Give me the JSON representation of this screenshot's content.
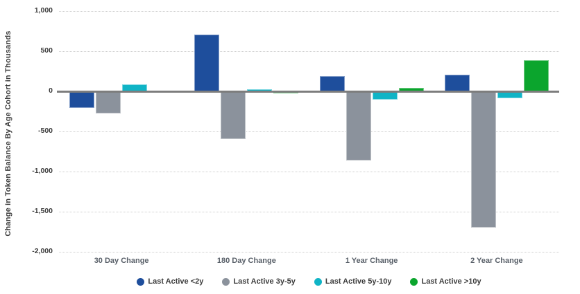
{
  "chart_data": {
    "type": "bar",
    "title": "",
    "xlabel": "",
    "ylabel": "Change in Token Balance By Age Cohort in Thousands",
    "categories": [
      "30 Day Change",
      "180 Day Change",
      "1 Year Change",
      "2 Year Change"
    ],
    "series": [
      {
        "name": "Last Active <2y",
        "color": "#1e4e9c",
        "values": [
          -210,
          705,
          190,
          205
        ]
      },
      {
        "name": "Last Active 3y-5y",
        "color": "#8b929c",
        "values": [
          -280,
          -595,
          -860,
          -1700
        ]
      },
      {
        "name": "Last Active 5y-10y",
        "color": "#10b4c6",
        "values": [
          90,
          25,
          -105,
          -85
        ]
      },
      {
        "name": "Last Active >10y",
        "color": "#0ba52d",
        "values": [
          10,
          -25,
          40,
          385
        ]
      }
    ],
    "ylim": [
      -2000,
      1000
    ],
    "yticks": [
      {
        "value": 1000,
        "label": "1,000"
      },
      {
        "value": 500,
        "label": "500"
      },
      {
        "value": 0,
        "label": "0"
      },
      {
        "value": -500,
        "label": "-500"
      },
      {
        "value": -1000,
        "label": "-1,000"
      },
      {
        "value": -1500,
        "label": "-1,500"
      },
      {
        "value": -2000,
        "label": "-2,000"
      }
    ],
    "grid": "horizontal-dotted",
    "legend_position": "bottom"
  },
  "colors": {
    "background": "#ffffff",
    "axis_line": "#7d7d7d",
    "gridline": "#cdcdcd",
    "tick_text": "#3d3d3d",
    "category_text": "#596069",
    "legend_text": "#3c3c3c"
  }
}
